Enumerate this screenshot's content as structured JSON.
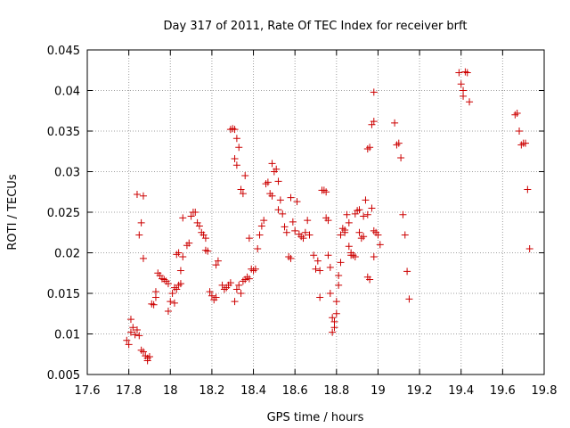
{
  "colors": {
    "points": "#cc0000",
    "frame": "#000000",
    "grid": "#a0a0a0"
  },
  "chart_data": {
    "type": "scatter",
    "title": "Day 317 of 2011, Rate Of TEC Index for receiver brft",
    "xlabel": "GPS time / hours",
    "ylabel": "ROTI / TECUs",
    "xlim": [
      17.6,
      19.8
    ],
    "ylim": [
      0.005,
      0.045
    ],
    "xticks": [
      17.6,
      17.8,
      18,
      18.2,
      18.4,
      18.6,
      18.8,
      19,
      19.2,
      19.4,
      19.6,
      19.8
    ],
    "xtick_labels": [
      "17.6",
      "17.8",
      "18",
      "18.2",
      "18.4",
      "18.6",
      "18.8",
      "19",
      "19.2",
      "19.4",
      "19.6",
      "19.8"
    ],
    "yticks": [
      0.005,
      0.01,
      0.015,
      0.02,
      0.025,
      0.03,
      0.035,
      0.04,
      0.045
    ],
    "ytick_labels": [
      "0.005",
      "0.01",
      "0.015",
      "0.02",
      "0.025",
      "0.03",
      "0.035",
      "0.04",
      "0.045"
    ],
    "grid": true,
    "marker": "+",
    "series": [
      {
        "name": "ROTI",
        "points": [
          [
            17.79,
            0.0092
          ],
          [
            17.8,
            0.0087
          ],
          [
            17.81,
            0.0102
          ],
          [
            17.81,
            0.0118
          ],
          [
            17.82,
            0.0108
          ],
          [
            17.83,
            0.0099
          ],
          [
            17.84,
            0.0105
          ],
          [
            17.85,
            0.0098
          ],
          [
            17.86,
            0.008
          ],
          [
            17.87,
            0.0078
          ],
          [
            17.88,
            0.0073
          ],
          [
            17.89,
            0.0067
          ],
          [
            17.89,
            0.007
          ],
          [
            17.9,
            0.0072
          ],
          [
            17.84,
            0.0272
          ],
          [
            17.87,
            0.027
          ],
          [
            17.85,
            0.0222
          ],
          [
            17.86,
            0.0237
          ],
          [
            17.87,
            0.0193
          ],
          [
            17.91,
            0.0137
          ],
          [
            17.92,
            0.0136
          ],
          [
            17.93,
            0.0145
          ],
          [
            17.93,
            0.0152
          ],
          [
            17.94,
            0.0175
          ],
          [
            17.95,
            0.0172
          ],
          [
            17.96,
            0.0168
          ],
          [
            17.97,
            0.0167
          ],
          [
            17.98,
            0.0165
          ],
          [
            17.99,
            0.0162
          ],
          [
            17.99,
            0.0128
          ],
          [
            18.0,
            0.014
          ],
          [
            18.01,
            0.015
          ],
          [
            18.02,
            0.0138
          ],
          [
            18.02,
            0.0157
          ],
          [
            18.03,
            0.0155
          ],
          [
            18.04,
            0.016
          ],
          [
            18.05,
            0.0162
          ],
          [
            18.05,
            0.0178
          ],
          [
            18.06,
            0.0195
          ],
          [
            18.03,
            0.0198
          ],
          [
            18.04,
            0.02
          ],
          [
            18.06,
            0.0243
          ],
          [
            18.08,
            0.0209
          ],
          [
            18.09,
            0.0212
          ],
          [
            18.1,
            0.0245
          ],
          [
            18.11,
            0.025
          ],
          [
            18.12,
            0.025
          ],
          [
            18.13,
            0.0237
          ],
          [
            18.14,
            0.0233
          ],
          [
            18.15,
            0.0225
          ],
          [
            18.16,
            0.0222
          ],
          [
            18.17,
            0.0218
          ],
          [
            18.17,
            0.0203
          ],
          [
            18.18,
            0.0202
          ],
          [
            18.19,
            0.0152
          ],
          [
            18.2,
            0.0147
          ],
          [
            18.21,
            0.0142
          ],
          [
            18.22,
            0.0145
          ],
          [
            18.22,
            0.0185
          ],
          [
            18.23,
            0.019
          ],
          [
            18.25,
            0.016
          ],
          [
            18.26,
            0.0155
          ],
          [
            18.27,
            0.0157
          ],
          [
            18.28,
            0.016
          ],
          [
            18.29,
            0.0163
          ],
          [
            18.29,
            0.0352
          ],
          [
            18.3,
            0.0353
          ],
          [
            18.31,
            0.0352
          ],
          [
            18.32,
            0.0341
          ],
          [
            18.31,
            0.0316
          ],
          [
            18.32,
            0.0308
          ],
          [
            18.33,
            0.033
          ],
          [
            18.34,
            0.0278
          ],
          [
            18.35,
            0.0273
          ],
          [
            18.36,
            0.0295
          ],
          [
            18.31,
            0.014
          ],
          [
            18.32,
            0.0155
          ],
          [
            18.33,
            0.016
          ],
          [
            18.34,
            0.015
          ],
          [
            18.35,
            0.0165
          ],
          [
            18.36,
            0.0167
          ],
          [
            18.37,
            0.017
          ],
          [
            18.38,
            0.0168
          ],
          [
            18.38,
            0.0218
          ],
          [
            18.39,
            0.018
          ],
          [
            18.4,
            0.0178
          ],
          [
            18.41,
            0.018
          ],
          [
            18.42,
            0.0205
          ],
          [
            18.43,
            0.0222
          ],
          [
            18.44,
            0.0233
          ],
          [
            18.45,
            0.024
          ],
          [
            18.46,
            0.0285
          ],
          [
            18.47,
            0.0287
          ],
          [
            18.48,
            0.0273
          ],
          [
            18.49,
            0.027
          ],
          [
            18.49,
            0.031
          ],
          [
            18.5,
            0.03
          ],
          [
            18.51,
            0.0303
          ],
          [
            18.52,
            0.0288
          ],
          [
            18.52,
            0.0253
          ],
          [
            18.53,
            0.0265
          ],
          [
            18.54,
            0.0248
          ],
          [
            18.55,
            0.0232
          ],
          [
            18.56,
            0.0225
          ],
          [
            18.57,
            0.0195
          ],
          [
            18.58,
            0.0193
          ],
          [
            18.58,
            0.0268
          ],
          [
            18.59,
            0.0238
          ],
          [
            18.6,
            0.0227
          ],
          [
            18.61,
            0.0263
          ],
          [
            18.62,
            0.0223
          ],
          [
            18.63,
            0.022
          ],
          [
            18.64,
            0.0218
          ],
          [
            18.65,
            0.0225
          ],
          [
            18.66,
            0.024
          ],
          [
            18.67,
            0.0222
          ],
          [
            18.69,
            0.0197
          ],
          [
            18.7,
            0.018
          ],
          [
            18.71,
            0.019
          ],
          [
            18.72,
            0.0178
          ],
          [
            18.72,
            0.0145
          ],
          [
            18.73,
            0.0277
          ],
          [
            18.74,
            0.0277
          ],
          [
            18.75,
            0.0275
          ],
          [
            18.75,
            0.0243
          ],
          [
            18.76,
            0.024
          ],
          [
            18.76,
            0.0197
          ],
          [
            18.77,
            0.0182
          ],
          [
            18.77,
            0.015
          ],
          [
            18.78,
            0.012
          ],
          [
            18.78,
            0.0102
          ],
          [
            18.79,
            0.0108
          ],
          [
            18.79,
            0.0115
          ],
          [
            18.8,
            0.0125
          ],
          [
            18.8,
            0.014
          ],
          [
            18.81,
            0.016
          ],
          [
            18.81,
            0.0172
          ],
          [
            18.82,
            0.0188
          ],
          [
            18.82,
            0.0222
          ],
          [
            18.83,
            0.023
          ],
          [
            18.84,
            0.0228
          ],
          [
            18.84,
            0.0225
          ],
          [
            18.85,
            0.0247
          ],
          [
            18.86,
            0.0237
          ],
          [
            18.86,
            0.0208
          ],
          [
            18.87,
            0.02
          ],
          [
            18.87,
            0.0197
          ],
          [
            18.88,
            0.0197
          ],
          [
            18.89,
            0.0195
          ],
          [
            18.89,
            0.0248
          ],
          [
            18.9,
            0.0252
          ],
          [
            18.91,
            0.0253
          ],
          [
            18.91,
            0.0225
          ],
          [
            18.92,
            0.0218
          ],
          [
            18.93,
            0.022
          ],
          [
            18.93,
            0.0245
          ],
          [
            18.94,
            0.0265
          ],
          [
            18.95,
            0.0247
          ],
          [
            18.95,
            0.017
          ],
          [
            18.96,
            0.0167
          ],
          [
            18.95,
            0.0328
          ],
          [
            18.96,
            0.033
          ],
          [
            18.97,
            0.0358
          ],
          [
            18.98,
            0.0362
          ],
          [
            18.98,
            0.0398
          ],
          [
            18.97,
            0.0255
          ],
          [
            18.98,
            0.0195
          ],
          [
            18.98,
            0.0227
          ],
          [
            18.99,
            0.0225
          ],
          [
            19.0,
            0.0222
          ],
          [
            19.01,
            0.021
          ],
          [
            19.08,
            0.036
          ],
          [
            19.09,
            0.0333
          ],
          [
            19.1,
            0.0335
          ],
          [
            19.11,
            0.0317
          ],
          [
            19.12,
            0.0247
          ],
          [
            19.13,
            0.0222
          ],
          [
            19.14,
            0.0177
          ],
          [
            19.15,
            0.0143
          ],
          [
            19.39,
            0.0422
          ],
          [
            19.4,
            0.0408
          ],
          [
            19.41,
            0.0393
          ],
          [
            19.41,
            0.04
          ],
          [
            19.42,
            0.0423
          ],
          [
            19.43,
            0.0422
          ],
          [
            19.44,
            0.0386
          ],
          [
            19.66,
            0.037
          ],
          [
            19.67,
            0.0372
          ],
          [
            19.68,
            0.035
          ],
          [
            19.69,
            0.0333
          ],
          [
            19.7,
            0.0335
          ],
          [
            19.71,
            0.0335
          ],
          [
            19.72,
            0.0278
          ],
          [
            19.73,
            0.0205
          ]
        ]
      }
    ]
  }
}
